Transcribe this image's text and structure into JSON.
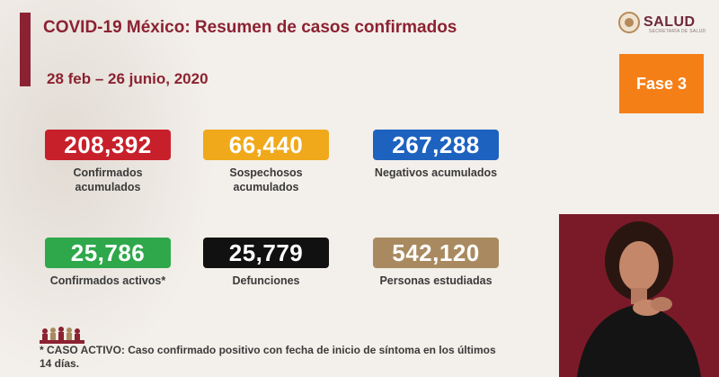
{
  "header": {
    "title": "COVID-19 México: Resumen de casos confirmados",
    "date_range": "28 feb – 26 junio, 2020"
  },
  "logo": {
    "text": "SALUD",
    "subtext": "SECRETARÍA DE SALUD"
  },
  "phase": {
    "label": "Fase 3",
    "color": "#f57f17"
  },
  "stats": [
    {
      "value": "208,392",
      "label": "Confirmados acumulados",
      "color": "#c8202a"
    },
    {
      "value": "66,440",
      "label": "Sospechosos acumulados",
      "color": "#f0a91b"
    },
    {
      "value": "267,288",
      "label": "Negativos acumulados",
      "color": "#1e62c0"
    },
    {
      "value": "25,786",
      "label": "Confirmados activos*",
      "color": "#2ea84a"
    },
    {
      "value": "25,779",
      "label": "Defunciones",
      "color": "#111111"
    },
    {
      "value": "542,120",
      "label": "Personas estudiadas",
      "color": "#a98a60"
    }
  ],
  "footnote": "* CASO ACTIVO: Caso confirmado positivo con fecha de inicio de síntoma en los últimos 14 días.",
  "colors": {
    "accent": "#8b2232",
    "background": "#f3efea",
    "interpreter_bg": "#7a1a28"
  }
}
